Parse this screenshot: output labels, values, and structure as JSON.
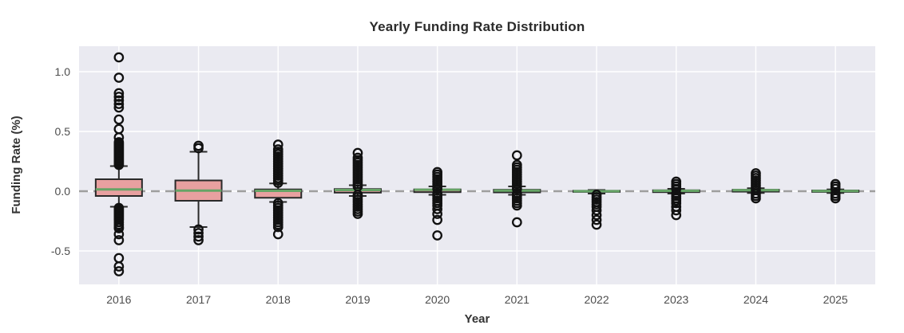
{
  "chart_data": {
    "type": "box",
    "title": "Yearly Funding Rate Distribution",
    "xlabel": "Year",
    "ylabel": "Funding Rate (%)",
    "categories": [
      "2016",
      "2017",
      "2018",
      "2019",
      "2020",
      "2021",
      "2022",
      "2023",
      "2024",
      "2025"
    ],
    "ytick_labels": [
      "1.0",
      "0.5",
      "0.0",
      "-0.5"
    ],
    "ytick_values": [
      1.0,
      0.5,
      0.0,
      -0.5
    ],
    "ylim": [
      -0.78,
      1.21
    ],
    "zero_line": 0.0,
    "grid": true,
    "legend": "none",
    "colors": {
      "plot_bg": "#eaeaf1",
      "grid_line": "#ffffff",
      "box_fill": "#e8a0a0",
      "box_edge": "#2a2a2a",
      "median_line": "#66a466",
      "outlier_stroke": "#111111",
      "zero_dash": "#9e9e9e",
      "tick_text": "#4d4d4d",
      "title_text": "#2b2b2b"
    },
    "boxes": [
      {
        "category": "2016",
        "median": 0.015,
        "q1": -0.04,
        "q3": 0.1,
        "whisker_low": -0.13,
        "whisker_high": 0.21,
        "outliers": [
          1.12,
          0.95,
          0.82,
          0.79,
          0.76,
          0.73,
          0.7,
          0.6,
          0.52,
          0.45,
          0.41,
          0.4,
          0.39,
          0.38,
          0.37,
          0.36,
          0.35,
          0.34,
          0.33,
          0.32,
          0.31,
          0.3,
          0.29,
          0.28,
          0.27,
          0.26,
          0.25,
          0.24,
          0.23,
          0.22,
          -0.14,
          -0.15,
          -0.16,
          -0.17,
          -0.18,
          -0.19,
          -0.2,
          -0.21,
          -0.22,
          -0.23,
          -0.24,
          -0.26,
          -0.28,
          -0.3,
          -0.31,
          -0.36,
          -0.41,
          -0.56,
          -0.63,
          -0.67
        ]
      },
      {
        "category": "2017",
        "median": 0.005,
        "q1": -0.08,
        "q3": 0.09,
        "whisker_low": -0.3,
        "whisker_high": 0.33,
        "outliers": [
          0.38,
          0.36,
          -0.32,
          -0.35,
          -0.38,
          -0.41
        ]
      },
      {
        "category": "2018",
        "median": 0.003,
        "q1": -0.055,
        "q3": 0.015,
        "whisker_low": -0.09,
        "whisker_high": 0.065,
        "outliers": [
          0.39,
          0.35,
          0.33,
          0.31,
          0.29,
          0.27,
          0.25,
          0.23,
          0.21,
          0.19,
          0.17,
          0.15,
          0.13,
          0.11,
          0.09,
          0.07,
          -0.1,
          -0.12,
          -0.14,
          -0.16,
          -0.18,
          -0.2,
          -0.22,
          -0.24,
          -0.26,
          -0.28,
          -0.3,
          -0.36
        ]
      },
      {
        "category": "2019",
        "median": 0.01,
        "q1": -0.012,
        "q3": 0.018,
        "whisker_low": -0.04,
        "whisker_high": 0.05,
        "outliers": [
          0.32,
          0.28,
          0.26,
          0.24,
          0.22,
          0.2,
          0.18,
          0.16,
          0.14,
          0.12,
          0.1,
          0.08,
          0.06,
          0.04,
          -0.03,
          -0.05,
          -0.07,
          -0.09,
          -0.11,
          -0.13,
          -0.15,
          -0.17,
          -0.19
        ]
      },
      {
        "category": "2020",
        "median": 0.012,
        "q1": -0.008,
        "q3": 0.015,
        "whisker_low": -0.03,
        "whisker_high": 0.04,
        "outliers": [
          0.16,
          0.14,
          0.12,
          0.1,
          0.08,
          0.06,
          0.04,
          0.02,
          -0.02,
          -0.04,
          -0.06,
          -0.08,
          -0.1,
          -0.12,
          -0.15,
          -0.19,
          -0.24,
          -0.37
        ]
      },
      {
        "category": "2021",
        "median": 0.005,
        "q1": -0.01,
        "q3": 0.012,
        "whisker_low": -0.03,
        "whisker_high": 0.04,
        "outliers": [
          0.3,
          0.22,
          0.2,
          0.18,
          0.16,
          0.14,
          0.12,
          0.1,
          0.08,
          0.06,
          0.04,
          0.02,
          -0.02,
          -0.04,
          -0.06,
          -0.08,
          -0.1,
          -0.12,
          -0.26
        ]
      },
      {
        "category": "2022",
        "median": 0.0,
        "q1": -0.006,
        "q3": 0.004,
        "whisker_low": -0.02,
        "whisker_high": 0.01,
        "outliers": [
          -0.03,
          -0.05,
          -0.07,
          -0.09,
          -0.11,
          -0.13,
          -0.16,
          -0.2,
          -0.24,
          -0.28
        ]
      },
      {
        "category": "2023",
        "median": 0.003,
        "q1": -0.008,
        "q3": 0.008,
        "whisker_low": -0.02,
        "whisker_high": 0.02,
        "outliers": [
          0.08,
          0.06,
          0.04,
          0.02,
          -0.02,
          -0.04,
          -0.06,
          -0.08,
          -0.1,
          -0.13,
          -0.16,
          -0.2
        ]
      },
      {
        "category": "2024",
        "median": 0.008,
        "q1": -0.004,
        "q3": 0.012,
        "whisker_low": -0.015,
        "whisker_high": 0.025,
        "outliers": [
          0.15,
          0.13,
          0.11,
          0.09,
          0.07,
          0.05,
          0.03,
          0.01,
          -0.02,
          -0.04,
          -0.06
        ]
      },
      {
        "category": "2025",
        "median": 0.002,
        "q1": -0.006,
        "q3": 0.006,
        "whisker_low": -0.015,
        "whisker_high": 0.015,
        "outliers": [
          0.06,
          0.04,
          0.02,
          -0.02,
          -0.04,
          -0.06
        ]
      }
    ]
  }
}
